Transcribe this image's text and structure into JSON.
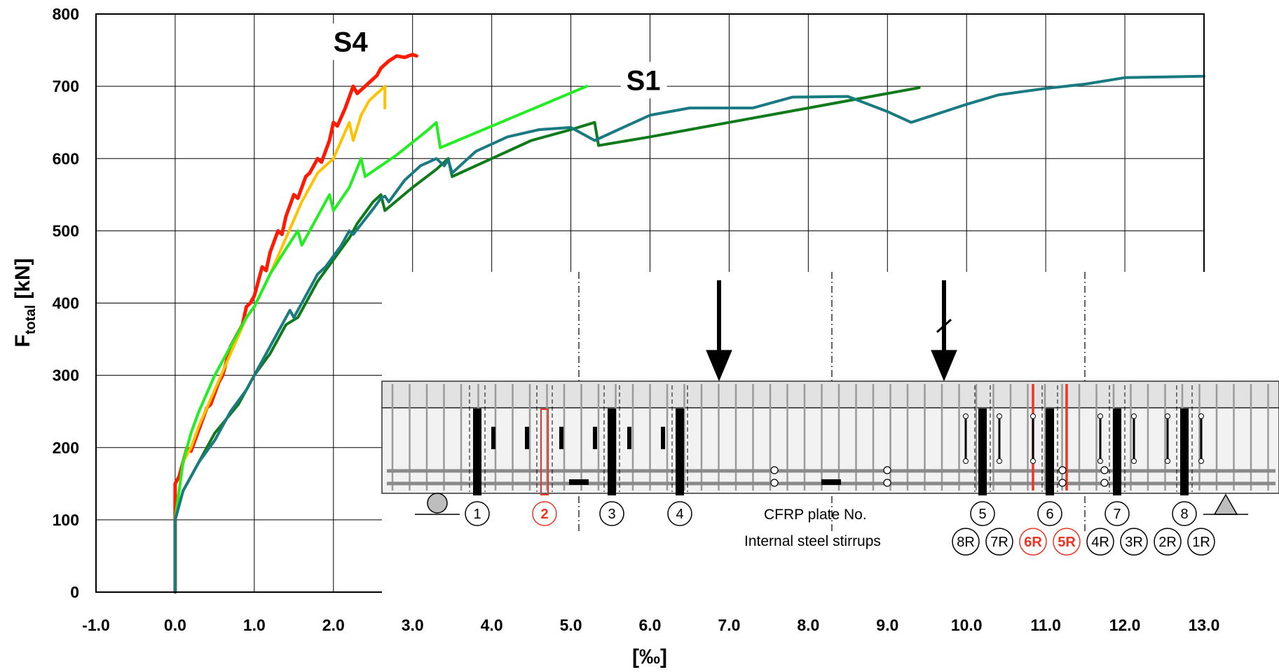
{
  "chart_data": {
    "type": "line",
    "xlabel": "[‰]",
    "ylabel_main": "F",
    "ylabel_sub": "total",
    "ylabel_unit": " [kN]",
    "xlim": [
      -1.0,
      13.0
    ],
    "ylim": [
      0,
      800
    ],
    "grid": true,
    "x_ticks": [
      "-1.0",
      "0.0",
      "1.0",
      "2.0",
      "3.0",
      "4.0",
      "5.0",
      "6.0",
      "7.0",
      "8.0",
      "9.0",
      "10.0",
      "11.0",
      "12.0",
      "13.0"
    ],
    "x_tick_values": [
      -1,
      0,
      1,
      2,
      3,
      4,
      5,
      6,
      7,
      8,
      9,
      10,
      11,
      12,
      13
    ],
    "y_ticks": [
      "0",
      "100",
      "200",
      "300",
      "400",
      "500",
      "600",
      "700",
      "800"
    ],
    "y_tick_values": [
      0,
      100,
      200,
      300,
      400,
      500,
      600,
      700,
      800
    ],
    "annotations": [
      {
        "text": "S4",
        "x": 2.0,
        "y": 748
      },
      {
        "text": "S1",
        "x": 5.7,
        "y": 695
      }
    ],
    "series": [
      {
        "color": "#ff1a00",
        "width": 5,
        "points": [
          [
            0,
            0
          ],
          [
            0,
            150
          ],
          [
            0.05,
            160
          ],
          [
            0.1,
            180
          ],
          [
            0.15,
            200
          ],
          [
            0.2,
            195
          ],
          [
            0.25,
            210
          ],
          [
            0.35,
            240
          ],
          [
            0.4,
            255
          ],
          [
            0.45,
            260
          ],
          [
            0.55,
            290
          ],
          [
            0.6,
            300
          ],
          [
            0.7,
            340
          ],
          [
            0.75,
            350
          ],
          [
            0.85,
            370
          ],
          [
            0.9,
            395
          ],
          [
            0.95,
            400
          ],
          [
            1.0,
            410
          ],
          [
            1.1,
            450
          ],
          [
            1.15,
            445
          ],
          [
            1.2,
            470
          ],
          [
            1.3,
            500
          ],
          [
            1.35,
            495
          ],
          [
            1.4,
            520
          ],
          [
            1.5,
            550
          ],
          [
            1.55,
            545
          ],
          [
            1.65,
            575
          ],
          [
            1.7,
            580
          ],
          [
            1.8,
            600
          ],
          [
            1.85,
            595
          ],
          [
            1.95,
            625
          ],
          [
            2.0,
            650
          ],
          [
            2.05,
            645
          ],
          [
            2.15,
            670
          ],
          [
            2.25,
            700
          ],
          [
            2.3,
            690
          ],
          [
            2.35,
            695
          ],
          [
            2.45,
            705
          ],
          [
            2.55,
            715
          ],
          [
            2.6,
            725
          ],
          [
            2.7,
            735
          ],
          [
            2.8,
            742
          ],
          [
            2.9,
            740
          ],
          [
            3.0,
            744
          ],
          [
            3.05,
            742
          ]
        ]
      },
      {
        "color": "#ffc200",
        "width": 4,
        "points": [
          [
            0,
            0
          ],
          [
            0,
            100
          ],
          [
            0.1,
            180
          ],
          [
            0.2,
            200
          ],
          [
            0.3,
            230
          ],
          [
            0.5,
            280
          ],
          [
            0.7,
            330
          ],
          [
            0.9,
            380
          ],
          [
            1.0,
            395
          ],
          [
            1.2,
            440
          ],
          [
            1.4,
            490
          ],
          [
            1.6,
            540
          ],
          [
            1.8,
            580
          ],
          [
            1.9,
            590
          ],
          [
            2.0,
            600
          ],
          [
            2.1,
            625
          ],
          [
            2.2,
            650
          ],
          [
            2.25,
            625
          ],
          [
            2.35,
            660
          ],
          [
            2.45,
            680
          ],
          [
            2.55,
            690
          ],
          [
            2.65,
            700
          ],
          [
            2.65,
            670
          ]
        ]
      },
      {
        "color": "#22ee22",
        "width": 4,
        "points": [
          [
            0,
            0
          ],
          [
            0,
            100
          ],
          [
            0.1,
            180
          ],
          [
            0.2,
            220
          ],
          [
            0.3,
            250
          ],
          [
            0.5,
            300
          ],
          [
            0.7,
            340
          ],
          [
            0.9,
            380
          ],
          [
            1.0,
            395
          ],
          [
            1.2,
            440
          ],
          [
            1.4,
            475
          ],
          [
            1.55,
            500
          ],
          [
            1.6,
            480
          ],
          [
            1.8,
            520
          ],
          [
            1.95,
            550
          ],
          [
            2.0,
            528
          ],
          [
            2.2,
            560
          ],
          [
            2.35,
            600
          ],
          [
            2.4,
            575
          ],
          [
            2.8,
            605
          ],
          [
            3.2,
            640
          ],
          [
            3.3,
            650
          ],
          [
            3.35,
            615
          ],
          [
            5.2,
            700
          ]
        ]
      },
      {
        "color": "#0f7a1a",
        "width": 4,
        "points": [
          [
            0,
            0
          ],
          [
            0,
            100
          ],
          [
            0.1,
            140
          ],
          [
            0.3,
            180
          ],
          [
            0.5,
            220
          ],
          [
            0.8,
            260
          ],
          [
            1.0,
            300
          ],
          [
            1.2,
            330
          ],
          [
            1.4,
            370
          ],
          [
            1.55,
            380
          ],
          [
            1.65,
            400
          ],
          [
            1.8,
            430
          ],
          [
            2.0,
            460
          ],
          [
            2.2,
            490
          ],
          [
            2.3,
            510
          ],
          [
            2.5,
            540
          ],
          [
            2.6,
            550
          ],
          [
            2.65,
            528
          ],
          [
            3.0,
            560
          ],
          [
            3.3,
            585
          ],
          [
            3.45,
            600
          ],
          [
            3.5,
            575
          ],
          [
            4.0,
            600
          ],
          [
            4.5,
            625
          ],
          [
            5.0,
            640
          ],
          [
            5.3,
            650
          ],
          [
            5.35,
            618
          ],
          [
            6.0,
            630
          ],
          [
            7.0,
            650
          ],
          [
            8.0,
            670
          ],
          [
            9.0,
            690
          ],
          [
            9.4,
            698
          ]
        ]
      },
      {
        "color": "#1a7a82",
        "width": 4,
        "points": [
          [
            0,
            0
          ],
          [
            0,
            100
          ],
          [
            0.1,
            140
          ],
          [
            0.3,
            180
          ],
          [
            0.5,
            210
          ],
          [
            0.7,
            250
          ],
          [
            0.9,
            280
          ],
          [
            1.1,
            320
          ],
          [
            1.3,
            360
          ],
          [
            1.45,
            390
          ],
          [
            1.5,
            380
          ],
          [
            1.7,
            420
          ],
          [
            1.8,
            440
          ],
          [
            1.9,
            450
          ],
          [
            2.1,
            480
          ],
          [
            2.2,
            500
          ],
          [
            2.25,
            495
          ],
          [
            2.5,
            530
          ],
          [
            2.6,
            545
          ],
          [
            2.65,
            548
          ],
          [
            2.7,
            540
          ],
          [
            2.9,
            570
          ],
          [
            3.1,
            590
          ],
          [
            3.3,
            600
          ],
          [
            3.4,
            590
          ],
          [
            3.45,
            598
          ],
          [
            3.5,
            580
          ],
          [
            3.8,
            610
          ],
          [
            4.2,
            630
          ],
          [
            4.6,
            640
          ],
          [
            5.0,
            643
          ],
          [
            5.3,
            625
          ],
          [
            5.6,
            640
          ],
          [
            6.0,
            660
          ],
          [
            6.5,
            670
          ],
          [
            7.3,
            670
          ],
          [
            7.8,
            685
          ],
          [
            8.5,
            686
          ],
          [
            9.0,
            665
          ],
          [
            9.3,
            650
          ],
          [
            10.0,
            675
          ],
          [
            10.4,
            688
          ],
          [
            11.0,
            697
          ],
          [
            11.5,
            703
          ],
          [
            12.0,
            712
          ],
          [
            13.0,
            714
          ]
        ]
      }
    ]
  },
  "inset": {
    "plate_label": "CFRP plate No.",
    "stirrup_label": "Internal steel stirrups",
    "plate_numbers": [
      "1",
      "2",
      "3",
      "4",
      "5",
      "6",
      "7",
      "8"
    ],
    "highlighted_plate": "2",
    "stirrup_numbers": [
      "8R",
      "7R",
      "6R",
      "5R",
      "4R",
      "3R",
      "2R",
      "1R"
    ],
    "highlighted_stirrups": [
      "6R",
      "5R"
    ],
    "colors": {
      "highlight": "#ee3322",
      "beam_top": "#e2e2e2",
      "beam_body": "#f2f2f2",
      "stirrup": "#9a9a9a",
      "plate": "#000000"
    }
  }
}
